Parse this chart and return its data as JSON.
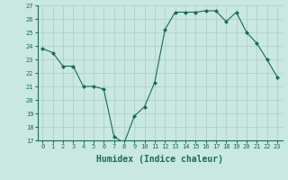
{
  "x": [
    0,
    1,
    2,
    3,
    4,
    5,
    6,
    7,
    8,
    9,
    10,
    11,
    12,
    13,
    14,
    15,
    16,
    17,
    18,
    19,
    20,
    21,
    22,
    23
  ],
  "y": [
    23.8,
    23.5,
    22.5,
    22.5,
    21.0,
    21.0,
    20.8,
    17.3,
    16.8,
    18.8,
    19.5,
    21.3,
    25.2,
    26.5,
    26.5,
    26.5,
    26.6,
    26.6,
    25.8,
    26.5,
    25.0,
    24.2,
    23.0,
    21.7
  ],
  "line_color": "#1a6b5a",
  "marker": "D",
  "marker_size": 2,
  "background_color": "#c8e8e0",
  "grid_color": "#aaccc4",
  "xlabel": "Humidex (Indice chaleur)",
  "ylim": [
    17,
    27
  ],
  "xlim": [
    -0.5,
    23.5
  ],
  "yticks": [
    17,
    18,
    19,
    20,
    21,
    22,
    23,
    24,
    25,
    26,
    27
  ],
  "xtick_labels": [
    "0",
    "1",
    "2",
    "3",
    "4",
    "5",
    "6",
    "7",
    "8",
    "9",
    "10",
    "11",
    "12",
    "13",
    "14",
    "15",
    "16",
    "17",
    "18",
    "19",
    "20",
    "21",
    "22",
    "23"
  ],
  "xlabel_fontsize": 7,
  "tick_fontsize": 5,
  "linewidth": 0.8
}
